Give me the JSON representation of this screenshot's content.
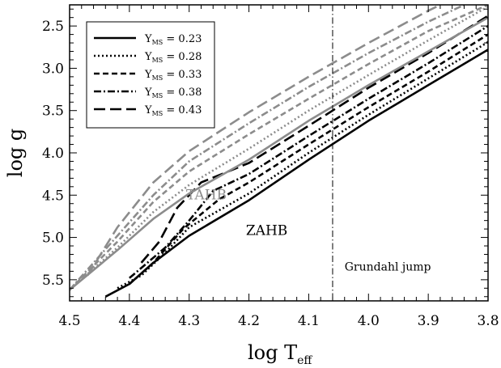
{
  "chart_data": {
    "type": "line",
    "xlabel": "log T",
    "xlabel_sub": "eff",
    "ylabel": "log g",
    "xlim": [
      4.5,
      3.8
    ],
    "ylim": [
      2.25,
      5.75
    ],
    "x_axis_reversed": true,
    "y_axis_reversed": true,
    "x_ticks": [
      4.5,
      4.4,
      4.3,
      4.2,
      4.1,
      4.0,
      3.9,
      3.8
    ],
    "x_tick_labels": [
      "4.5",
      "4.4",
      "4.3",
      "4.2",
      "4.1",
      "4.0",
      "3.9",
      "3.8"
    ],
    "y_ticks": [
      2.5,
      3.0,
      3.5,
      4.0,
      4.5,
      5.0,
      5.5
    ],
    "y_tick_labels": [
      "2.5",
      "3.0",
      "3.5",
      "4.0",
      "4.5",
      "5.0",
      "5.5"
    ],
    "grid": false,
    "legend_position": "top-left",
    "legend": [
      {
        "label_main": "Y",
        "label_sub": "MS",
        "label_value": " = 0.23",
        "style": "solid"
      },
      {
        "label_main": "Y",
        "label_sub": "MS",
        "label_value": " = 0.28",
        "style": "dotted"
      },
      {
        "label_main": "Y",
        "label_sub": "MS",
        "label_value": " = 0.33",
        "style": "dashed"
      },
      {
        "label_main": "Y",
        "label_sub": "MS",
        "label_value": " = 0.38",
        "style": "dashdot"
      },
      {
        "label_main": "Y",
        "label_sub": "MS",
        "label_value": " = 0.43",
        "style": "longdash"
      }
    ],
    "annotations": [
      {
        "text": "TAHB",
        "x": 4.305,
        "y": 4.55,
        "color": "#8c8c8c"
      },
      {
        "text": "ZAHB",
        "x": 4.205,
        "y": 4.97,
        "color": "#000000"
      },
      {
        "text": "Grundahl jump",
        "x": 4.04,
        "y": 5.39,
        "color": "#000000"
      }
    ],
    "reference_lines": [
      {
        "axis": "x",
        "value": 4.06,
        "style": "dashdot"
      }
    ],
    "colors": {
      "zahb": "#000000",
      "tahb": "#8c8c8c"
    },
    "series": [
      {
        "name": "Y_MS = 0.23",
        "group": "ZAHB",
        "style": "solid",
        "points": [
          [
            4.44,
            5.7
          ],
          [
            4.4,
            5.55
          ],
          [
            4.36,
            5.3
          ],
          [
            4.3,
            4.98
          ],
          [
            4.2,
            4.56
          ],
          [
            4.1,
            4.08
          ],
          [
            4.0,
            3.62
          ],
          [
            3.9,
            3.2
          ],
          [
            3.8,
            2.78
          ]
        ]
      },
      {
        "name": "Y_MS = 0.28",
        "group": "ZAHB",
        "style": "dotted",
        "points": [
          [
            4.42,
            5.6
          ],
          [
            4.38,
            5.45
          ],
          [
            4.34,
            5.18
          ],
          [
            4.3,
            4.88
          ],
          [
            4.2,
            4.48
          ],
          [
            4.1,
            4.0
          ],
          [
            4.0,
            3.55
          ],
          [
            3.9,
            3.12
          ],
          [
            3.8,
            2.69
          ]
        ]
      },
      {
        "name": "Y_MS = 0.33",
        "group": "ZAHB",
        "style": "dashed",
        "points": [
          [
            4.4,
            5.55
          ],
          [
            4.36,
            5.3
          ],
          [
            4.31,
            4.9
          ],
          [
            4.25,
            4.55
          ],
          [
            4.2,
            4.35
          ],
          [
            4.1,
            3.9
          ],
          [
            4.0,
            3.46
          ],
          [
            3.9,
            3.04
          ],
          [
            3.8,
            2.6
          ]
        ]
      },
      {
        "name": "Y_MS = 0.38",
        "group": "ZAHB",
        "style": "dashdot",
        "points": [
          [
            4.4,
            5.48
          ],
          [
            4.34,
            5.12
          ],
          [
            4.3,
            4.8
          ],
          [
            4.26,
            4.45
          ],
          [
            4.2,
            4.25
          ],
          [
            4.1,
            3.8
          ],
          [
            4.0,
            3.36
          ],
          [
            3.9,
            2.94
          ],
          [
            3.8,
            2.5
          ]
        ]
      },
      {
        "name": "Y_MS = 0.43",
        "group": "ZAHB",
        "style": "longdash",
        "points": [
          [
            4.38,
            5.3
          ],
          [
            4.35,
            5.05
          ],
          [
            4.32,
            4.65
          ],
          [
            4.28,
            4.35
          ],
          [
            4.2,
            4.12
          ],
          [
            4.1,
            3.68
          ],
          [
            4.0,
            3.23
          ],
          [
            3.9,
            2.82
          ],
          [
            3.8,
            2.38
          ]
        ]
      },
      {
        "name": "Y_MS = 0.23",
        "group": "TAHB",
        "style": "solid",
        "points": [
          [
            4.5,
            5.62
          ],
          [
            4.42,
            5.15
          ],
          [
            4.36,
            4.78
          ],
          [
            4.3,
            4.48
          ],
          [
            4.2,
            4.08
          ],
          [
            4.1,
            3.62
          ],
          [
            4.0,
            3.2
          ],
          [
            3.9,
            2.8
          ],
          [
            3.8,
            2.4
          ]
        ]
      },
      {
        "name": "Y_MS = 0.28",
        "group": "TAHB",
        "style": "dotted",
        "points": [
          [
            4.5,
            5.62
          ],
          [
            4.42,
            5.12
          ],
          [
            4.36,
            4.7
          ],
          [
            4.3,
            4.38
          ],
          [
            4.2,
            3.95
          ],
          [
            4.1,
            3.5
          ],
          [
            4.0,
            3.08
          ],
          [
            3.9,
            2.67
          ],
          [
            3.8,
            2.27
          ]
        ]
      },
      {
        "name": "Y_MS = 0.33",
        "group": "TAHB",
        "style": "dashed",
        "points": [
          [
            4.5,
            5.62
          ],
          [
            4.42,
            5.05
          ],
          [
            4.36,
            4.58
          ],
          [
            4.3,
            4.22
          ],
          [
            4.2,
            3.78
          ],
          [
            4.1,
            3.36
          ],
          [
            4.0,
            2.95
          ],
          [
            3.9,
            2.56
          ],
          [
            3.8,
            2.25
          ]
        ]
      },
      {
        "name": "Y_MS = 0.38",
        "group": "TAHB",
        "style": "dashdot",
        "points": [
          [
            4.5,
            5.62
          ],
          [
            4.42,
            4.98
          ],
          [
            4.36,
            4.5
          ],
          [
            4.3,
            4.1
          ],
          [
            4.2,
            3.65
          ],
          [
            4.1,
            3.22
          ],
          [
            4.0,
            2.82
          ],
          [
            3.9,
            2.45
          ],
          [
            3.84,
            2.25
          ]
        ]
      },
      {
        "name": "Y_MS = 0.43",
        "group": "TAHB",
        "style": "longdash",
        "points": [
          [
            4.47,
            5.45
          ],
          [
            4.42,
            4.88
          ],
          [
            4.36,
            4.35
          ],
          [
            4.3,
            3.98
          ],
          [
            4.2,
            3.52
          ],
          [
            4.1,
            3.1
          ],
          [
            4.0,
            2.7
          ],
          [
            3.9,
            2.32
          ],
          [
            3.88,
            2.25
          ]
        ]
      }
    ]
  }
}
